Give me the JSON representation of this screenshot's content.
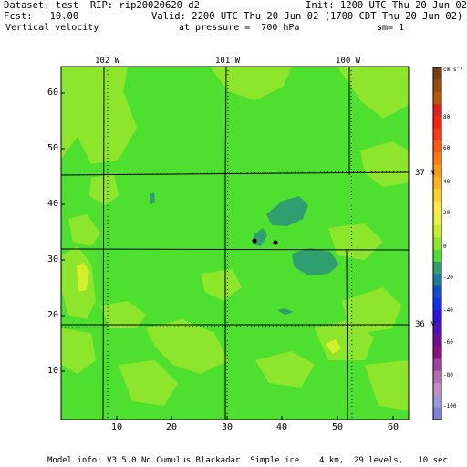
{
  "header": {
    "dataset": "Dataset: test  RIP: rip20020620 d2",
    "init": "Init: 1200 UTC Thu 20 Jun 02",
    "fcst": "Fcst:   10.00",
    "valid": "Valid: 2200 UTC Thu 20 Jun 02 (1700 CDT Thu 20 Jun 02)",
    "field": "Vertical velocity",
    "pressure": "at pressure =  700 hPa",
    "sm": "sm= 1"
  },
  "map": {
    "longitudes": [
      "102 W",
      "101 W",
      "100 W"
    ],
    "latitudes": [
      "37 N",
      "36 N"
    ],
    "x_ticks": [
      "10",
      "20",
      "30",
      "40",
      "50",
      "60"
    ],
    "y_ticks": [
      "10",
      "20",
      "30",
      "40",
      "50",
      "60"
    ],
    "base_color": "#4ee02e",
    "light_color": "#8ee62c",
    "yellow_color": "#d4f02a",
    "dark_color": "#2f9f6f"
  },
  "colorbar": {
    "unit": "cm s⁻¹",
    "labels": [
      "80",
      "60",
      "40",
      "20",
      "0",
      "-20",
      "-40",
      "-60",
      "-80",
      "-100"
    ],
    "colors": [
      "#7b3f10",
      "#9a4a0c",
      "#b85808",
      "#e02018",
      "#ff2010",
      "#ff3a10",
      "#ff5a10",
      "#ff7a10",
      "#ff9a10",
      "#ffb020",
      "#ffd028",
      "#ffe840",
      "#e8f040",
      "#c8f02a",
      "#8ee62c",
      "#4ee02e",
      "#2f9f6f",
      "#1a7a9a",
      "#1050d0",
      "#1030f0",
      "#3010e0",
      "#5010c0",
      "#701090",
      "#901080",
      "#a040a0",
      "#b070b0",
      "#c090c0",
      "#9a9ad8",
      "#8080e0"
    ]
  },
  "footer": "Model info: V3.5.0 No Cumulus Blackadar  Simple ice    4 km,  29 levels,   10 sec"
}
